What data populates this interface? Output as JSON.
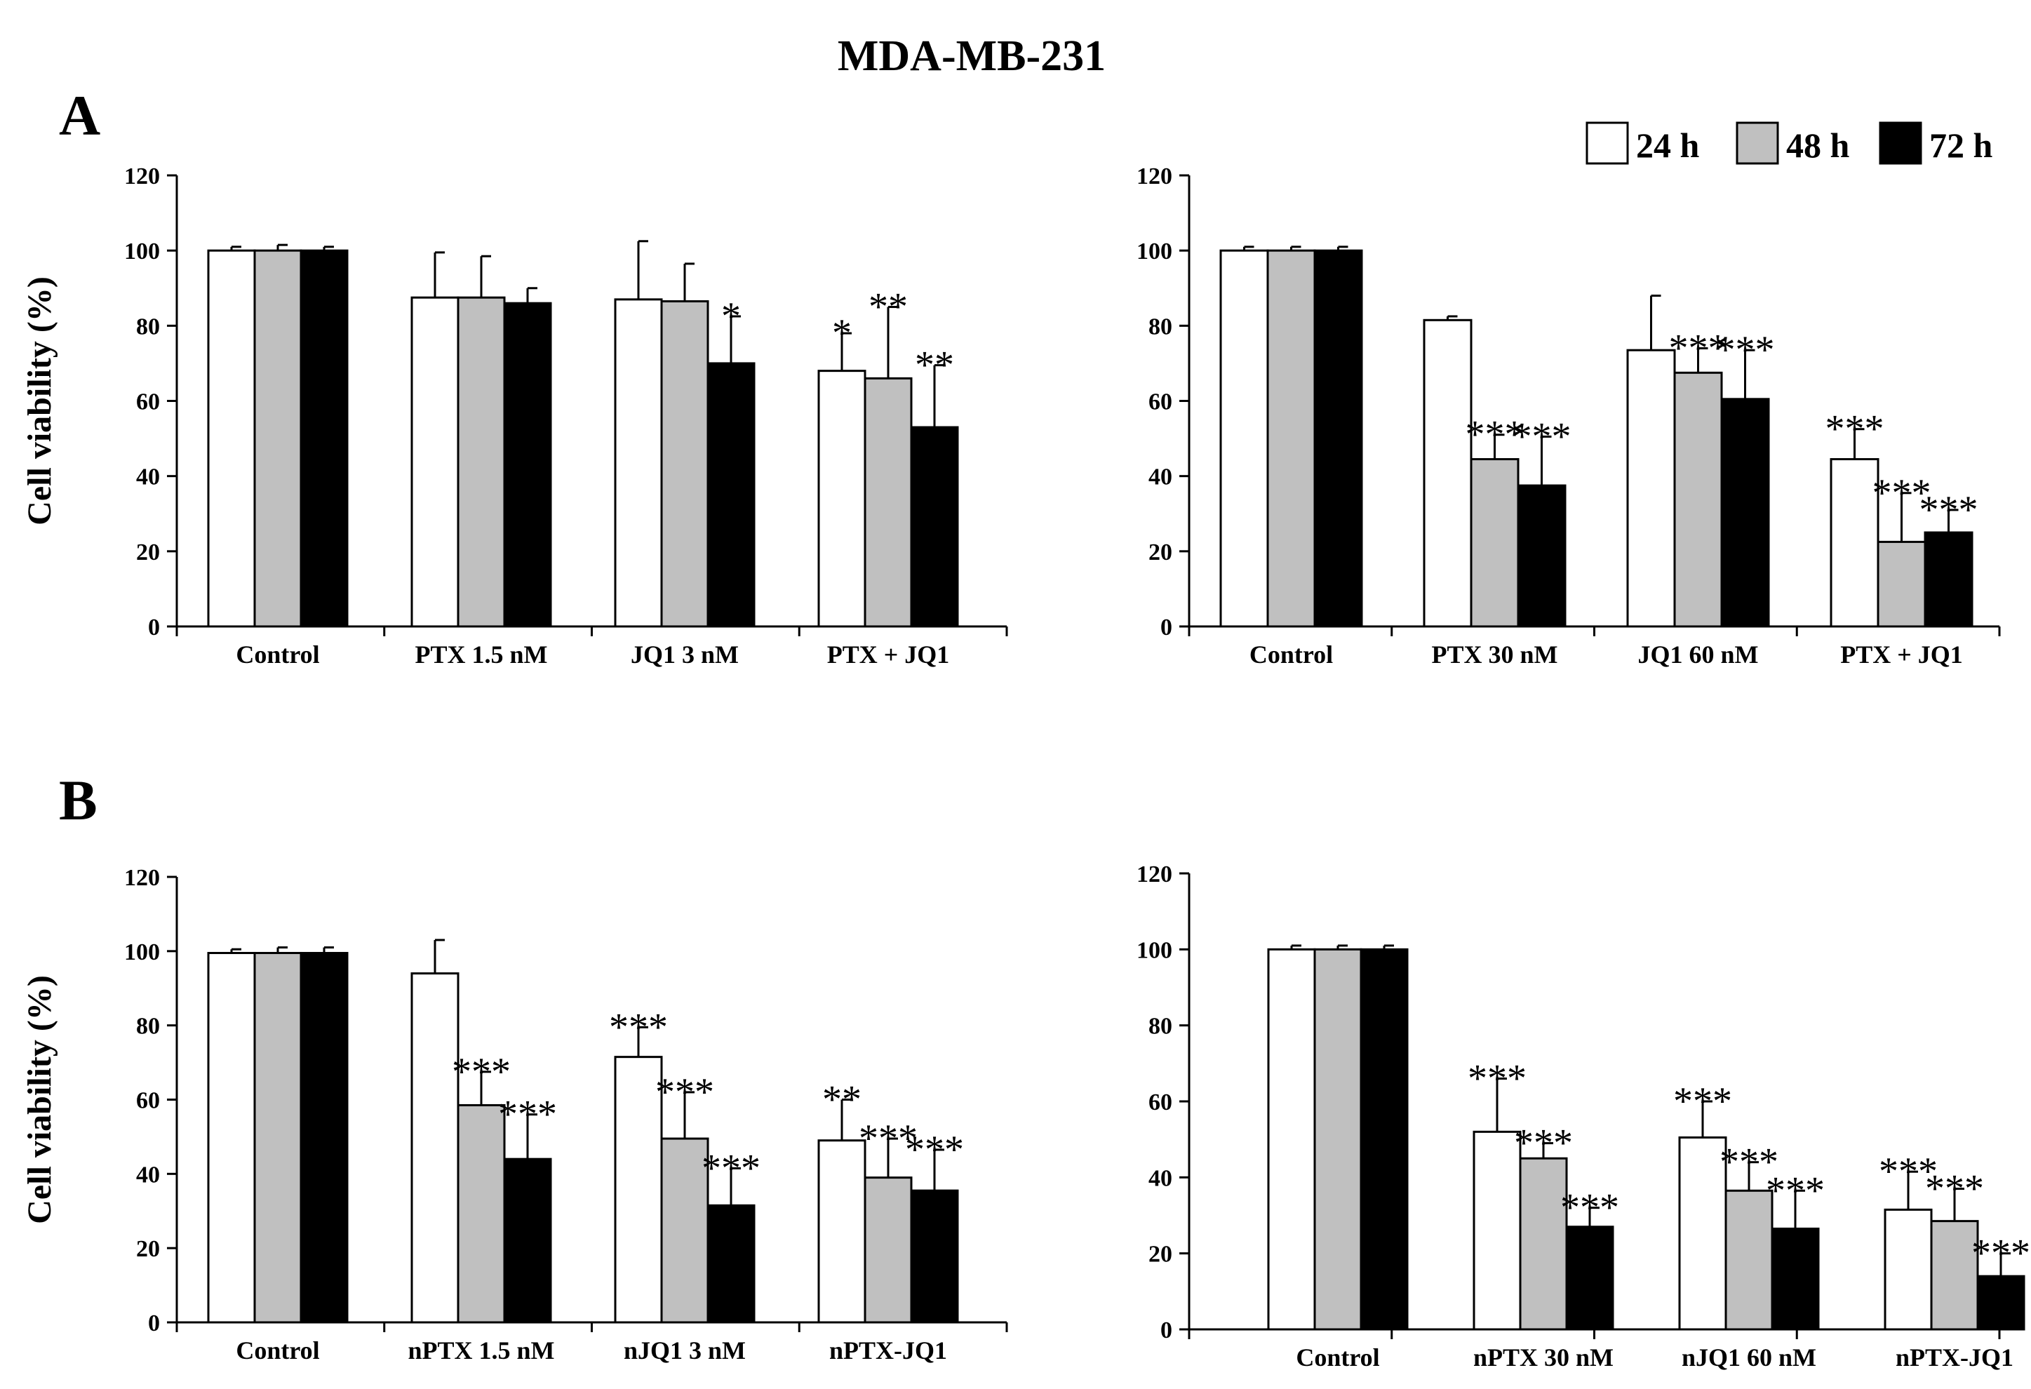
{
  "figure_title": "MDA-MB-231",
  "colors": {
    "h24": "#ffffff",
    "h48": "#c0c0c0",
    "h72": "#000000",
    "stroke": "#000000"
  },
  "legend": [
    {
      "label": "24 h",
      "color": "#ffffff"
    },
    {
      "label": "48 h",
      "color": "#c0c0c0"
    },
    {
      "label": "72 h",
      "color": "#000000"
    }
  ],
  "panel_labels": {
    "A": "A",
    "B": "B"
  },
  "ylabel": "Cell viability (%)",
  "chart_data": [
    {
      "type": "bar",
      "panel": "A",
      "position": "top-left",
      "categories": [
        "Control",
        "PTX 1.5 nM",
        "JQ1 3 nM",
        "PTX + JQ1"
      ],
      "series": [
        {
          "name": "24 h",
          "values": [
            100,
            87.5,
            87,
            68
          ],
          "errors": [
            1,
            12,
            15.5,
            10
          ],
          "sig": [
            "",
            "",
            "",
            "*"
          ]
        },
        {
          "name": "48 h",
          "values": [
            100,
            87.5,
            86.5,
            66
          ],
          "errors": [
            1.5,
            11,
            10,
            19
          ],
          "sig": [
            "",
            "",
            "",
            "**"
          ]
        },
        {
          "name": "72 h",
          "values": [
            100,
            86,
            70,
            53
          ],
          "errors": [
            1,
            4,
            12.5,
            16.5
          ],
          "sig": [
            "",
            "",
            "*",
            "**"
          ]
        }
      ],
      "ylim": [
        0,
        120
      ],
      "yticks": [
        "0",
        "20",
        "40",
        "60",
        "80",
        "100",
        "120"
      ],
      "ylabel": "Cell viability (%)",
      "xlabel": ""
    },
    {
      "type": "bar",
      "panel": "A",
      "position": "top-right",
      "categories": [
        "Control",
        "PTX 30 nM",
        "JQ1 60 nM",
        "PTX + JQ1"
      ],
      "series": [
        {
          "name": "24 h",
          "values": [
            100,
            81.5,
            73.5,
            44.5
          ],
          "errors": [
            1,
            1,
            14.5,
            8
          ],
          "sig": [
            "",
            "",
            "",
            "***"
          ]
        },
        {
          "name": "48 h",
          "values": [
            100,
            44.5,
            67.5,
            22.5
          ],
          "errors": [
            1,
            6.5,
            6.5,
            13
          ],
          "sig": [
            "",
            "***",
            "***",
            "***"
          ]
        },
        {
          "name": "72 h",
          "values": [
            100,
            37.5,
            60.5,
            25
          ],
          "errors": [
            1,
            13,
            13,
            6
          ],
          "sig": [
            "",
            "***",
            "***",
            "***"
          ]
        }
      ],
      "ylim": [
        0,
        120
      ],
      "yticks": [
        "0",
        "20",
        "40",
        "60",
        "80",
        "100",
        "120"
      ],
      "ylabel": "",
      "xlabel": ""
    },
    {
      "type": "bar",
      "panel": "B",
      "position": "bottom-left",
      "categories": [
        "Control",
        "nPTX 1.5 nM",
        "nJQ1 3 nM",
        "nPTX-JQ1"
      ],
      "series": [
        {
          "name": "24 h",
          "values": [
            99.5,
            94,
            71.5,
            49
          ],
          "errors": [
            1,
            9,
            8,
            11
          ],
          "sig": [
            "",
            "",
            "***",
            "**"
          ]
        },
        {
          "name": "48 h",
          "values": [
            99.5,
            58.5,
            49.5,
            39
          ],
          "errors": [
            1.5,
            9,
            12.5,
            10.5
          ],
          "sig": [
            "",
            "***",
            "***",
            "***"
          ]
        },
        {
          "name": "72 h",
          "values": [
            99.5,
            44,
            31.5,
            35.5
          ],
          "errors": [
            1.5,
            12,
            10,
            11
          ],
          "sig": [
            "",
            "***",
            "***",
            "***"
          ]
        }
      ],
      "ylim": [
        0,
        120
      ],
      "yticks": [
        "0",
        "20",
        "40",
        "60",
        "80",
        "100",
        "120"
      ],
      "ylabel": "Cell viability (%)",
      "xlabel": ""
    },
    {
      "type": "bar",
      "panel": "B",
      "position": "bottom-right",
      "categories": [
        "Control",
        "nPTX 30 nM",
        "nJQ1 60 nM",
        "nPTX-JQ1"
      ],
      "series": [
        {
          "name": "24 h",
          "values": [
            100,
            52,
            50.5,
            31.5
          ],
          "errors": [
            1,
            14,
            9.5,
            10
          ],
          "sig": [
            "",
            "***",
            "***",
            "***"
          ]
        },
        {
          "name": "48 h",
          "values": [
            100,
            45,
            36.5,
            28.5
          ],
          "errors": [
            1,
            4,
            7.5,
            8.5
          ],
          "sig": [
            "",
            "***",
            "***",
            "***"
          ]
        },
        {
          "name": "72 h",
          "values": [
            100,
            27,
            26.5,
            14
          ],
          "errors": [
            1,
            5,
            10,
            6
          ],
          "sig": [
            "",
            "***",
            "***",
            "***"
          ]
        }
      ],
      "ylim": [
        0,
        120
      ],
      "yticks": [
        "0",
        "20",
        "40",
        "60",
        "80",
        "100",
        "120"
      ],
      "ylabel": "",
      "xlabel": ""
    }
  ]
}
